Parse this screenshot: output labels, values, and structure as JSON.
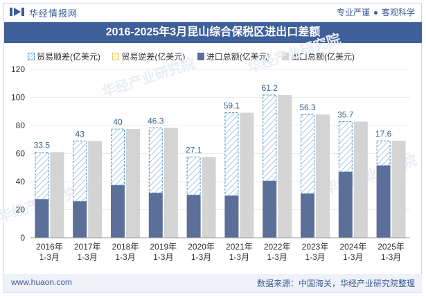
{
  "header": {
    "brand": "华经情报网",
    "tag1": "专业严谨",
    "tag2": "客观科学"
  },
  "title": "2016-2025年3月昆山综合保税区进出口差额",
  "legend": {
    "surplus": "贸易顺差(亿美元)",
    "deficit": "贸易逆差(亿美元)",
    "import": "进口总额(亿美元)",
    "export": "出口总额(亿美元)"
  },
  "footer": {
    "url": "www.huaon.com",
    "source": "数据来源：中国海关，华经产业研究院整理"
  },
  "watermark": "华经产业研究院",
  "colors": {
    "title_bg": "#3f5f9a",
    "import": "#5b6f99",
    "export": "#d4d4d4",
    "surplus_border": "#4a90c2",
    "label": "#3a5f8a"
  },
  "chart_data": {
    "type": "bar",
    "title": "2016-2025年3月昆山综合保税区进出口差额",
    "categories": [
      [
        "2016年",
        "1-3月"
      ],
      [
        "2017年",
        "1-3月"
      ],
      [
        "2018年",
        "1-3月"
      ],
      [
        "2019年",
        "1-3月"
      ],
      [
        "2020年",
        "1-3月"
      ],
      [
        "2021年",
        "1-3月"
      ],
      [
        "2022年",
        "1-3月"
      ],
      [
        "2023年",
        "1-3月"
      ],
      [
        "2024年",
        "1-3月"
      ],
      [
        "2025年",
        "1-3月"
      ]
    ],
    "series": [
      {
        "name": "进口总额(亿美元)",
        "values": [
          27.5,
          26.0,
          37.5,
          32.0,
          30.5,
          30.0,
          40.5,
          31.5,
          47.0,
          51.5
        ]
      },
      {
        "name": "出口总额(亿美元)",
        "values": [
          61.0,
          69.0,
          77.5,
          78.3,
          57.6,
          89.1,
          101.7,
          87.8,
          82.7,
          69.1
        ]
      },
      {
        "name": "贸易顺差(亿美元)",
        "values": [
          33.5,
          43,
          40,
          46.3,
          27.1,
          59.1,
          61.2,
          56.3,
          35.7,
          17.6
        ]
      },
      {
        "name": "贸易逆差(亿美元)",
        "values": [
          0,
          0,
          0,
          0,
          0,
          0,
          0,
          0,
          0,
          0
        ]
      }
    ],
    "surplus_labels": [
      "33.5",
      "43",
      "40",
      "46.3",
      "27.1",
      "59.1",
      "61.2",
      "56.3",
      "35.7",
      "17.6"
    ],
    "yticks": [
      0,
      20,
      40,
      60,
      80,
      100,
      120
    ],
    "ylim": [
      0,
      120
    ],
    "xlabel": "",
    "ylabel": ""
  }
}
